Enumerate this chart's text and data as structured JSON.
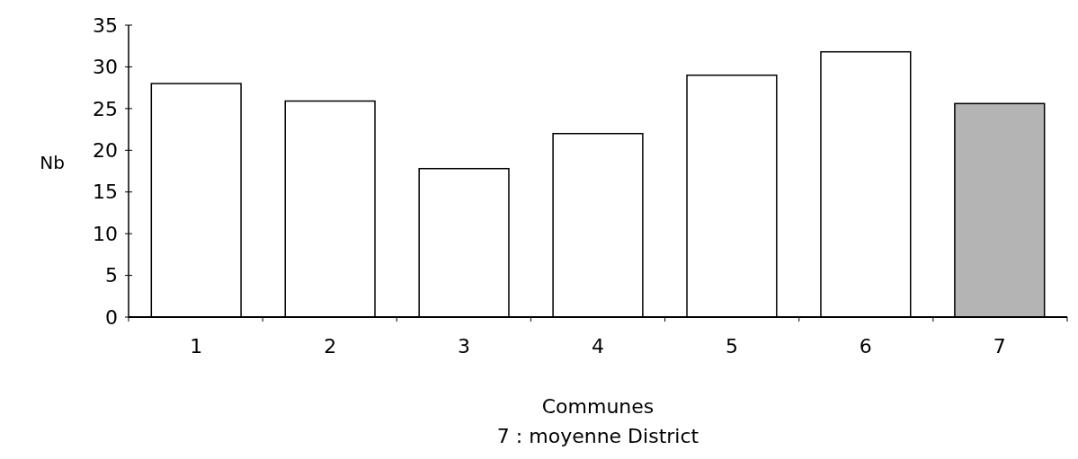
{
  "chart_data": {
    "type": "bar",
    "xlabel": "Communes",
    "ylabel": "Nb",
    "annotations": [
      "7 : moyenne District"
    ],
    "categories": [
      "1",
      "2",
      "3",
      "4",
      "5",
      "6",
      "7"
    ],
    "values": [
      28,
      25.9,
      17.8,
      22,
      29,
      31.8,
      25.6
    ],
    "colors": [
      "#ffffff",
      "#ffffff",
      "#ffffff",
      "#ffffff",
      "#ffffff",
      "#ffffff",
      "#b4b4b4"
    ],
    "ylim": [
      0,
      35
    ],
    "yticks": [
      0,
      5,
      10,
      15,
      20,
      25,
      30,
      35
    ],
    "grid": false
  }
}
